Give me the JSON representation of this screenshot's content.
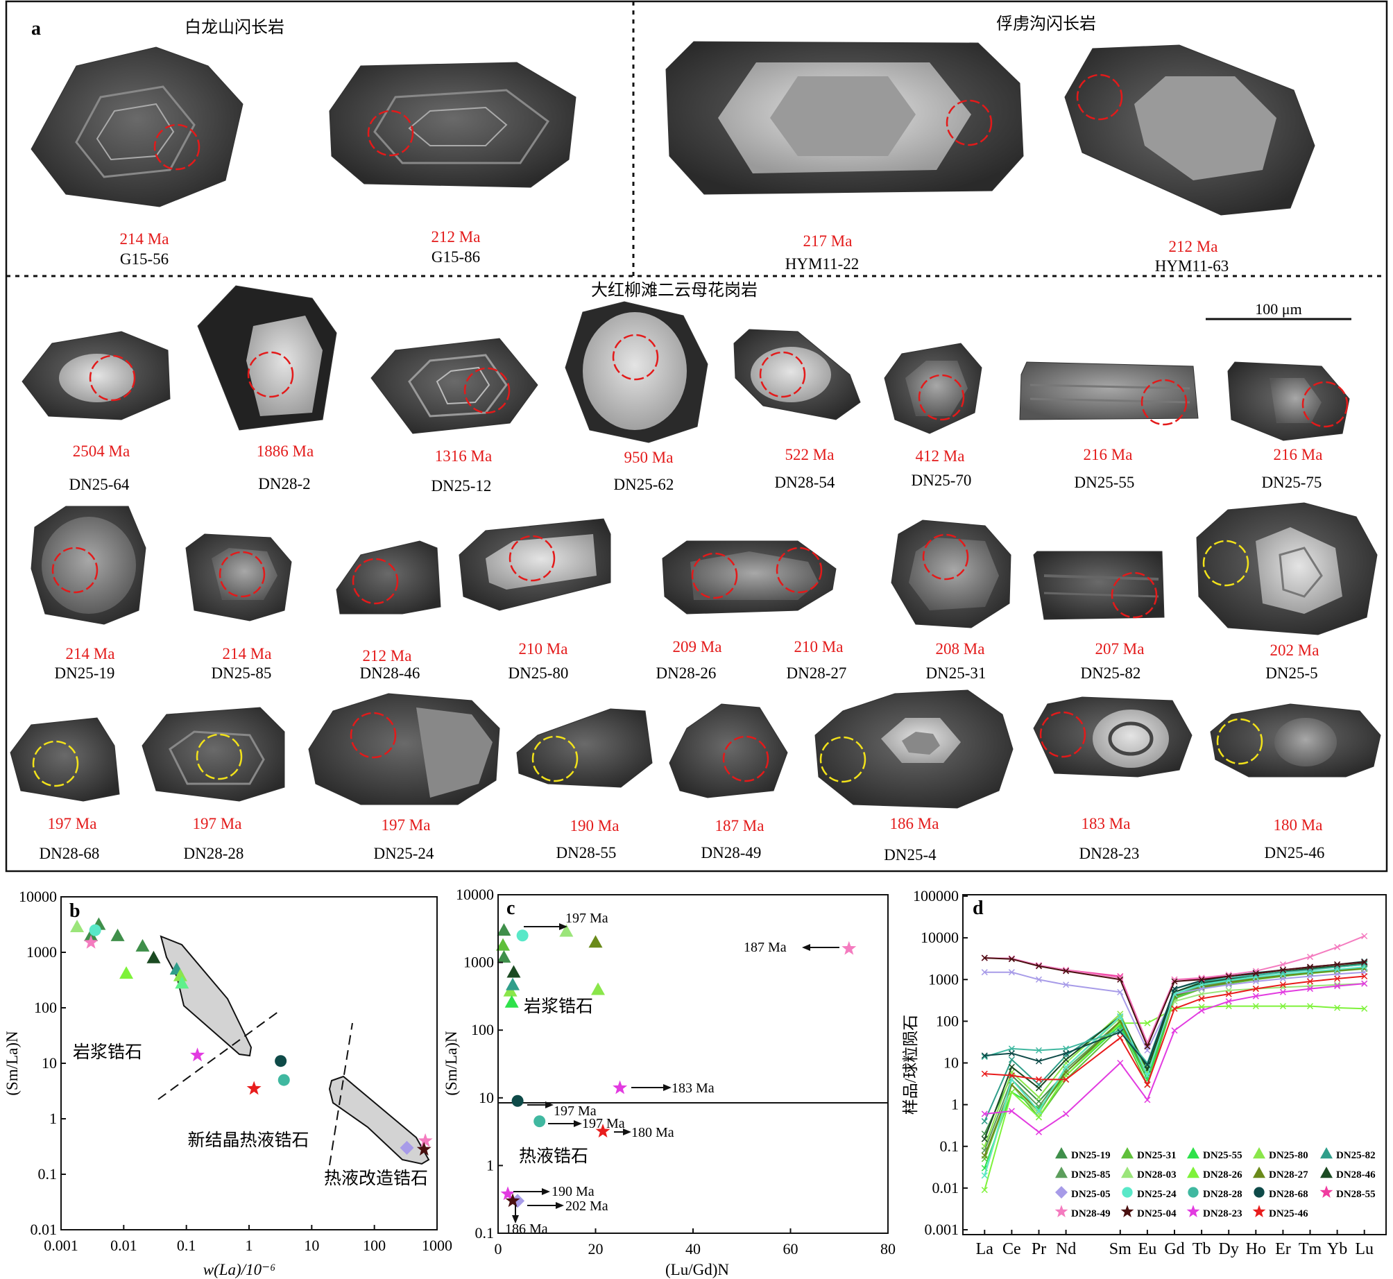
{
  "panel_a": {
    "letter": "a",
    "group_titles": [
      "白龙山闪长岩",
      "俘虏沟闪长岩",
      "大红柳滩二云母花岗岩"
    ],
    "scale_bar": "100 μm",
    "grains": [
      {
        "age": "214 Ma",
        "id": "G15-56"
      },
      {
        "age": "212 Ma",
        "id": "G15-86"
      },
      {
        "age": "217 Ma",
        "id": "HYM11-22"
      },
      {
        "age": "212 Ma",
        "id": "HYM11-63"
      },
      {
        "age": "2504 Ma",
        "id": "DN25-64"
      },
      {
        "age": "1886 Ma",
        "id": "DN28-2"
      },
      {
        "age": "1316 Ma",
        "id": "DN25-12"
      },
      {
        "age": "950 Ma",
        "id": "DN25-62"
      },
      {
        "age": "522 Ma",
        "id": "DN28-54"
      },
      {
        "age": "412 Ma",
        "id": "DN25-70"
      },
      {
        "age": "216 Ma",
        "id": "DN25-55"
      },
      {
        "age": "216 Ma",
        "id": "DN25-75"
      },
      {
        "age": "214 Ma",
        "id": "DN25-19"
      },
      {
        "age": "214 Ma",
        "id": "DN25-85"
      },
      {
        "age": "212 Ma",
        "id": "DN28-46"
      },
      {
        "age": "210 Ma",
        "id": "DN25-80"
      },
      {
        "age": "209 Ma",
        "id": "DN28-26"
      },
      {
        "age": "210 Ma",
        "id": "DN28-27"
      },
      {
        "age": "208 Ma",
        "id": "DN25-31"
      },
      {
        "age": "207 Ma",
        "id": "DN25-82"
      },
      {
        "age": "202 Ma",
        "id": "DN25-5"
      },
      {
        "age": "197 Ma",
        "id": "DN28-68"
      },
      {
        "age": "197 Ma",
        "id": "DN28-28"
      },
      {
        "age": "197 Ma",
        "id": "DN25-24"
      },
      {
        "age": "190 Ma",
        "id": "DN28-55"
      },
      {
        "age": "187 Ma",
        "id": "DN28-49"
      },
      {
        "age": "186 Ma",
        "id": "DN25-4"
      },
      {
        "age": "183 Ma",
        "id": "DN28-23"
      },
      {
        "age": "180 Ma",
        "id": "DN25-46"
      }
    ]
  },
  "chart_data": [
    {
      "type": "scatter",
      "panel": "b",
      "xlabel": "w(La)/10⁻⁶",
      "ylabel": "(Sm/La)N",
      "xscale": "log",
      "yscale": "log",
      "xlim": [
        0.001,
        1000
      ],
      "ylim": [
        0.01,
        10000
      ],
      "xticks": [
        "0.001",
        "0.01",
        "0.1",
        "1",
        "10",
        "100",
        "1000"
      ],
      "yticks": [
        "0.01",
        "0.1",
        "1",
        "10",
        "100",
        "1000",
        "10000"
      ],
      "region_labels": [
        "岩浆锆石",
        "新结晶热液锆石",
        "热液改造锆石"
      ],
      "points": [
        {
          "x": 0.0018,
          "y": 2900,
          "marker": "triangle",
          "color": "#9be57a"
        },
        {
          "x": 0.003,
          "y": 2000,
          "marker": "triangle",
          "color": "#3f8f4a"
        },
        {
          "x": 0.004,
          "y": 3200,
          "marker": "triangle",
          "color": "#3f8f4a"
        },
        {
          "x": 0.0035,
          "y": 2500,
          "marker": "circle",
          "color": "#59e8c8"
        },
        {
          "x": 0.008,
          "y": 2000,
          "marker": "triangle",
          "color": "#3f8f4a"
        },
        {
          "x": 0.003,
          "y": 1500,
          "marker": "star",
          "color": "#f47bbf"
        },
        {
          "x": 0.011,
          "y": 420,
          "marker": "triangle",
          "color": "#7ef23a"
        },
        {
          "x": 0.02,
          "y": 1300,
          "marker": "triangle",
          "color": "#3f8f4a"
        },
        {
          "x": 0.03,
          "y": 800,
          "marker": "triangle",
          "color": "#1b4a22"
        },
        {
          "x": 0.07,
          "y": 500,
          "marker": "triangle",
          "color": "#2f9e8a"
        },
        {
          "x": 0.08,
          "y": 380,
          "marker": "triangle",
          "color": "#8ae64a"
        },
        {
          "x": 0.085,
          "y": 280,
          "marker": "triangle",
          "color": "#5ef08a"
        },
        {
          "x": 0.15,
          "y": 14,
          "marker": "star",
          "color": "#e23be0"
        },
        {
          "x": 1.2,
          "y": 3.5,
          "marker": "star",
          "color": "#e81c1c"
        },
        {
          "x": 3.2,
          "y": 11,
          "marker": "circle",
          "color": "#0e4a48"
        },
        {
          "x": 3.6,
          "y": 5,
          "marker": "circle",
          "color": "#40b8a0"
        },
        {
          "x": 330,
          "y": 0.3,
          "marker": "diamond",
          "color": "#a79be8"
        },
        {
          "x": 650,
          "y": 0.4,
          "marker": "star",
          "color": "#f47bbf"
        },
        {
          "x": 620,
          "y": 0.28,
          "marker": "star",
          "color": "#4a1010"
        }
      ]
    },
    {
      "type": "scatter",
      "panel": "c",
      "xlabel": "(Lu/Gd)N",
      "ylabel": "(Sm/La)N",
      "yscale": "log",
      "xlim": [
        0,
        80
      ],
      "ylim": [
        0.1,
        10000
      ],
      "xticks": [
        "0",
        "20",
        "40",
        "60",
        "80"
      ],
      "yticks": [
        "0.1",
        "1",
        "10",
        "100",
        "1000",
        "10000"
      ],
      "region_labels": [
        "岩浆锆石",
        "热液锆石"
      ],
      "annotations": [
        "197 Ma",
        "187 Ma",
        "183 Ma",
        "197 Ma",
        "197 Ma",
        "180 Ma",
        "190 Ma",
        "202 Ma",
        "186 Ma"
      ],
      "points": [
        {
          "x": 1.2,
          "y": 3000,
          "marker": "triangle",
          "color": "#3f8f4a"
        },
        {
          "x": 1.0,
          "y": 1800,
          "marker": "triangle",
          "color": "#5fbf3a"
        },
        {
          "x": 1.2,
          "y": 1200,
          "marker": "triangle",
          "color": "#3f8f4a"
        },
        {
          "x": 3.2,
          "y": 720,
          "marker": "triangle",
          "color": "#1b4a22"
        },
        {
          "x": 2.5,
          "y": 380,
          "marker": "triangle",
          "color": "#8ae64a"
        },
        {
          "x": 3.0,
          "y": 470,
          "marker": "triangle",
          "color": "#2f9e8a"
        },
        {
          "x": 2.8,
          "y": 260,
          "marker": "triangle",
          "color": "#2ee14a"
        },
        {
          "x": 5.0,
          "y": 2500,
          "marker": "circle",
          "color": "#59e8c8"
        },
        {
          "x": 14,
          "y": 2900,
          "marker": "triangle",
          "color": "#9be57a"
        },
        {
          "x": 20,
          "y": 2000,
          "marker": "triangle",
          "color": "#6a8a1a"
        },
        {
          "x": 20.5,
          "y": 400,
          "marker": "triangle",
          "color": "#8ae64a"
        },
        {
          "x": 72,
          "y": 1600,
          "marker": "star",
          "color": "#f47bbf"
        },
        {
          "x": 25,
          "y": 14,
          "marker": "star",
          "color": "#e23be0"
        },
        {
          "x": 4,
          "y": 9,
          "marker": "circle",
          "color": "#0e4a48"
        },
        {
          "x": 8.5,
          "y": 4.5,
          "marker": "circle",
          "color": "#40b8a0"
        },
        {
          "x": 21.5,
          "y": 3.2,
          "marker": "star",
          "color": "#e81c1c"
        },
        {
          "x": 2,
          "y": 0.38,
          "marker": "star",
          "color": "#e23be0"
        },
        {
          "x": 4,
          "y": 0.3,
          "marker": "diamond",
          "color": "#a79be8"
        },
        {
          "x": 3,
          "y": 0.3,
          "marker": "star",
          "color": "#4a1010"
        }
      ]
    },
    {
      "type": "line",
      "panel": "d",
      "ylabel": "样品/球粒陨石",
      "yscale": "log",
      "ylim": [
        0.001,
        100000
      ],
      "yticks": [
        "0.001",
        "0.01",
        "0.1",
        "1",
        "10",
        "100",
        "1000",
        "10000",
        "100000"
      ],
      "categories": [
        "La",
        "Ce",
        "Pr",
        "Nd",
        "Sm",
        "Eu",
        "Gd",
        "Tb",
        "Dy",
        "Ho",
        "Er",
        "Tm",
        "Yb",
        "Lu"
      ],
      "x_positions": [
        1,
        2,
        3,
        4,
        6,
        7,
        8,
        9,
        10,
        11,
        12,
        13,
        14,
        15
      ],
      "legend": [
        "DN25-19",
        "DN25-31",
        "DN25-55",
        "DN25-80",
        "DN25-82",
        "DN25-85",
        "DN28-03",
        "DN28-26",
        "DN28-27",
        "DN28-46",
        "DN25-05",
        "DN25-24",
        "DN28-28",
        "DN28-68",
        "DN28-55",
        "DN28-49",
        "DN25-04",
        "DN28-23",
        "DN25-46"
      ],
      "series": [
        {
          "name": "DN25-19",
          "color": "#3f8f4a",
          "marker": "triangle",
          "values": [
            0.2,
            5,
            1.2,
            6,
            90,
            4,
            400,
            700,
            900,
            1100,
            1300,
            1500,
            1700,
            2000
          ]
        },
        {
          "name": "DN25-31",
          "color": "#5fbf3a",
          "marker": "triangle",
          "values": [
            0.05,
            3,
            0.5,
            4,
            70,
            3,
            350,
            600,
            800,
            1000,
            1200,
            1400,
            1600,
            1800
          ]
        },
        {
          "name": "DN25-55",
          "color": "#2ee14a",
          "marker": "triangle",
          "values": [
            0.03,
            2,
            0.8,
            5,
            80,
            4,
            380,
            650,
            850,
            1050,
            1250,
            1450,
            1650,
            1900
          ]
        },
        {
          "name": "DN25-80",
          "color": "#8ae64a",
          "marker": "triangle",
          "values": [
            0.1,
            6,
            1.5,
            10,
            150,
            6,
            420,
            700,
            900,
            1100,
            1300,
            1500,
            1700,
            1900
          ]
        },
        {
          "name": "DN25-82",
          "color": "#2f9e8a",
          "marker": "triangle",
          "values": [
            0.4,
            12,
            3,
            15,
            120,
            7,
            500,
            800,
            1000,
            1250,
            1500,
            1800,
            2000,
            2300
          ]
        },
        {
          "name": "DN25-85",
          "color": "#5c9e5c",
          "marker": "triangle",
          "values": [
            0.08,
            4,
            0.9,
            7,
            100,
            5,
            420,
            700,
            900,
            1100,
            1300,
            1500,
            1700,
            1900
          ]
        },
        {
          "name": "DN28-03",
          "color": "#9be57a",
          "marker": "triangle",
          "values": [
            0.02,
            3,
            0.6,
            8,
            120,
            8,
            300,
            450,
            550,
            600,
            650,
            700,
            750,
            800
          ]
        },
        {
          "name": "DN28-26",
          "color": "#7ef23a",
          "marker": "triangle",
          "values": [
            0.009,
            2,
            0.5,
            5,
            90,
            90,
            200,
            220,
            230,
            230,
            230,
            230,
            210,
            200
          ]
        },
        {
          "name": "DN28-27",
          "color": "#6a8a1a",
          "marker": "triangle",
          "values": [
            0.06,
            3,
            0.7,
            6,
            100,
            5,
            400,
            650,
            850,
            1050,
            1250,
            1450,
            1650,
            1850
          ]
        },
        {
          "name": "DN28-46",
          "color": "#1b4a22",
          "marker": "triangle",
          "values": [
            0.15,
            8,
            2.5,
            12,
            130,
            7,
            500,
            850,
            1050,
            1300,
            1550,
            1850,
            2100,
            2400
          ]
        },
        {
          "name": "DN25-05",
          "color": "#a79be8",
          "marker": "diamond",
          "values": [
            1500,
            1500,
            1000,
            750,
            500,
            20,
            450,
            600,
            750,
            900,
            1050,
            1200,
            1350,
            1500
          ]
        },
        {
          "name": "DN25-24",
          "color": "#59e8c8",
          "marker": "circle",
          "values": [
            0.02,
            4,
            0.7,
            8,
            130,
            5,
            450,
            750,
            950,
            1150,
            1350,
            1550,
            1750,
            2000
          ]
        },
        {
          "name": "DN28-28",
          "color": "#40b8a0",
          "marker": "circle",
          "values": [
            14,
            22,
            20,
            22,
            60,
            10,
            600,
            900,
            1100,
            1300,
            1500,
            1700,
            2000,
            2300
          ]
        },
        {
          "name": "DN28-68",
          "color": "#0e4a48",
          "marker": "circle",
          "values": [
            15,
            17,
            11,
            17,
            55,
            9,
            600,
            950,
            1200,
            1450,
            1700,
            2000,
            2300,
            2700
          ]
        },
        {
          "name": "DN28-55",
          "color": "#f03ca0",
          "marker": "star",
          "values": [
            3300,
            3200,
            2200,
            1700,
            1200,
            30,
            1000,
            1050,
            1200,
            1400,
            1700,
            2000,
            2300,
            2600
          ]
        },
        {
          "name": "DN28-49",
          "color": "#f47bbf",
          "marker": "star",
          "values": [
            3300,
            3200,
            2200,
            1700,
            1100,
            30,
            1000,
            1100,
            1300,
            1600,
            2300,
            3500,
            6000,
            11000
          ]
        },
        {
          "name": "DN25-04",
          "color": "#4a1010",
          "marker": "star",
          "values": [
            3300,
            3100,
            2100,
            1600,
            1000,
            25,
            900,
            1000,
            1200,
            1400,
            1700,
            2000,
            2300,
            2600
          ]
        },
        {
          "name": "DN28-23",
          "color": "#e23be0",
          "marker": "star",
          "values": [
            0.6,
            0.7,
            0.22,
            0.6,
            10,
            1.3,
            60,
            180,
            300,
            400,
            500,
            600,
            700,
            800
          ]
        },
        {
          "name": "DN25-46",
          "color": "#e81c1c",
          "marker": "star",
          "values": [
            5.5,
            5,
            4,
            4,
            40,
            3,
            200,
            350,
            450,
            600,
            750,
            900,
            1050,
            1200
          ]
        }
      ]
    }
  ]
}
